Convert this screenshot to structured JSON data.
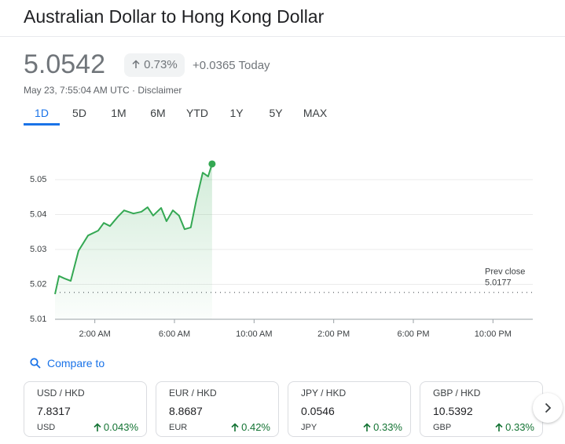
{
  "header": {
    "title": "Australian Dollar to Hong Kong Dollar"
  },
  "quote": {
    "price": "5.0542",
    "change_pct": "0.73%",
    "change_abs": "+0.0365 Today",
    "timestamp": "May 23, 7:55:04 AM UTC ·",
    "disclaimer": "Disclaimer"
  },
  "ranges": [
    "1D",
    "5D",
    "1M",
    "6M",
    "YTD",
    "1Y",
    "5Y",
    "MAX"
  ],
  "active_range": 0,
  "chart_data": {
    "type": "line",
    "color": "#34a853",
    "x": [
      0,
      0.2,
      0.47,
      0.79,
      1.18,
      1.66,
      2.17,
      2.45,
      2.76,
      3.16,
      3.47,
      3.94,
      4.34,
      4.65,
      4.93,
      5.33,
      5.6,
      5.92,
      6.23,
      6.51,
      6.82,
      7.1,
      7.42,
      7.69,
      7.89
    ],
    "values": [
      5.0172,
      5.0224,
      5.0217,
      5.021,
      5.0296,
      5.034,
      5.0354,
      5.0376,
      5.0367,
      5.0394,
      5.0412,
      5.0403,
      5.0408,
      5.0421,
      5.0397,
      5.0419,
      5.0381,
      5.0412,
      5.0397,
      5.0358,
      5.0363,
      5.0442,
      5.052,
      5.0509,
      5.0545
    ],
    "xlim": [
      0,
      24
    ],
    "xticks": [
      {
        "value": 2,
        "label": "2:00 AM"
      },
      {
        "value": 6,
        "label": "6:00 AM"
      },
      {
        "value": 10,
        "label": "10:00 AM"
      },
      {
        "value": 14,
        "label": "2:00 PM"
      },
      {
        "value": 18,
        "label": "6:00 PM"
      },
      {
        "value": 22,
        "label": "10:00 PM"
      }
    ],
    "ylim": [
      5.01,
      5.06
    ],
    "yticks": [
      5.01,
      5.02,
      5.03,
      5.04,
      5.05
    ],
    "grid": true,
    "prev_close_label": "Prev close",
    "prev_close": 5.0177
  },
  "compare": {
    "label": "Compare to",
    "cards": [
      {
        "pair": "USD / HKD",
        "price": "7.8317",
        "currency": "USD",
        "change": "0.043%"
      },
      {
        "pair": "EUR / HKD",
        "price": "8.8687",
        "currency": "EUR",
        "change": "0.42%"
      },
      {
        "pair": "JPY / HKD",
        "price": "0.0546",
        "currency": "JPY",
        "change": "0.33%"
      },
      {
        "pair": "GBP / HKD",
        "price": "10.5392",
        "currency": "GBP",
        "change": "0.33%"
      }
    ]
  }
}
